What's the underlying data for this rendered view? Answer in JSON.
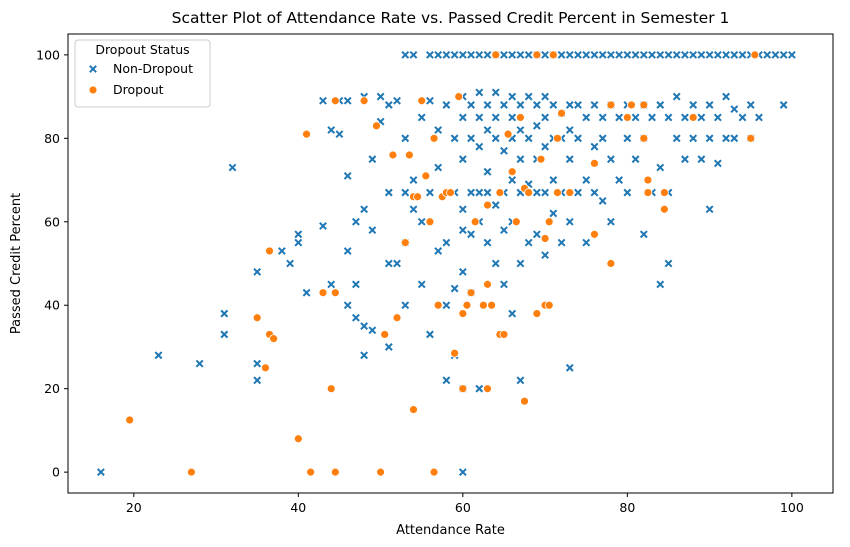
{
  "chart_data": {
    "type": "scatter",
    "title": "Scatter Plot of Attendance Rate vs. Passed Credit Percent in Semester 1",
    "xlabel": "Attendance Rate",
    "ylabel": "Passed Credit Percent",
    "xlim": [
      12,
      105
    ],
    "ylim": [
      -5,
      105
    ],
    "xticks": [
      20,
      40,
      60,
      80,
      100
    ],
    "yticks": [
      0,
      20,
      40,
      60,
      80,
      100
    ],
    "grid": false,
    "legend": {
      "title": "Dropout Status",
      "position": "top-left"
    },
    "series": [
      {
        "name": "Non-Dropout",
        "marker": "x",
        "color": "#1f77b4",
        "points": [
          [
            16,
            0
          ],
          [
            60,
            0
          ],
          [
            23,
            28
          ],
          [
            28,
            26
          ],
          [
            31,
            33
          ],
          [
            31,
            38
          ],
          [
            32,
            73
          ],
          [
            35,
            26
          ],
          [
            35,
            22
          ],
          [
            35,
            48
          ],
          [
            38,
            53
          ],
          [
            39,
            50
          ],
          [
            40,
            55
          ],
          [
            40,
            57
          ],
          [
            41,
            43
          ],
          [
            43,
            59
          ],
          [
            43,
            89
          ],
          [
            44,
            82
          ],
          [
            44,
            45
          ],
          [
            45,
            81
          ],
          [
            45,
            89
          ],
          [
            46,
            71
          ],
          [
            46,
            40
          ],
          [
            46,
            89
          ],
          [
            46,
            53
          ],
          [
            47,
            37
          ],
          [
            47,
            45
          ],
          [
            47,
            60
          ],
          [
            48,
            28
          ],
          [
            48,
            35
          ],
          [
            48,
            63
          ],
          [
            48,
            90
          ],
          [
            49,
            34
          ],
          [
            49,
            58
          ],
          [
            49,
            75
          ],
          [
            50,
            84
          ],
          [
            50,
            90
          ],
          [
            51,
            30
          ],
          [
            51,
            50
          ],
          [
            51,
            67
          ],
          [
            51,
            88
          ],
          [
            52,
            50
          ],
          [
            52,
            89
          ],
          [
            53,
            100
          ],
          [
            53,
            80
          ],
          [
            53,
            55
          ],
          [
            53,
            40
          ],
          [
            53,
            67
          ],
          [
            54,
            63
          ],
          [
            54,
            100
          ],
          [
            54,
            70
          ],
          [
            55,
            45
          ],
          [
            55,
            85
          ],
          [
            55,
            60
          ],
          [
            56,
            100
          ],
          [
            56,
            89
          ],
          [
            56,
            67
          ],
          [
            56,
            33
          ],
          [
            57,
            100
          ],
          [
            57,
            82
          ],
          [
            57,
            53
          ],
          [
            57,
            73
          ],
          [
            58,
            100
          ],
          [
            58,
            55
          ],
          [
            58,
            88
          ],
          [
            58,
            40
          ],
          [
            58,
            22
          ],
          [
            59,
            100
          ],
          [
            59,
            80
          ],
          [
            59,
            67
          ],
          [
            59,
            44
          ],
          [
            59,
            28
          ],
          [
            60,
            100
          ],
          [
            60,
            90
          ],
          [
            60,
            85
          ],
          [
            60,
            75
          ],
          [
            60,
            58
          ],
          [
            60,
            63
          ],
          [
            60,
            48
          ],
          [
            60,
            20
          ],
          [
            61,
            100
          ],
          [
            61,
            88
          ],
          [
            61,
            80
          ],
          [
            61,
            67
          ],
          [
            61,
            57
          ],
          [
            61,
            43
          ],
          [
            62,
            100
          ],
          [
            62,
            91
          ],
          [
            62,
            85
          ],
          [
            62,
            78
          ],
          [
            62,
            67
          ],
          [
            62,
            60
          ],
          [
            62,
            20
          ],
          [
            63,
            100
          ],
          [
            63,
            88
          ],
          [
            63,
            82
          ],
          [
            63,
            72
          ],
          [
            63,
            67
          ],
          [
            63,
            55
          ],
          [
            63,
            40
          ],
          [
            64,
            100
          ],
          [
            64,
            91
          ],
          [
            64,
            85
          ],
          [
            64,
            80
          ],
          [
            64,
            64
          ],
          [
            64,
            50
          ],
          [
            65,
            100
          ],
          [
            65,
            88
          ],
          [
            65,
            77
          ],
          [
            65,
            67
          ],
          [
            65,
            58
          ],
          [
            65,
            45
          ],
          [
            66,
            100
          ],
          [
            66,
            90
          ],
          [
            66,
            85
          ],
          [
            66,
            80
          ],
          [
            66,
            70
          ],
          [
            66,
            60
          ],
          [
            66,
            38
          ],
          [
            67,
            100
          ],
          [
            67,
            88
          ],
          [
            67,
            82
          ],
          [
            67,
            75
          ],
          [
            67,
            67
          ],
          [
            67,
            50
          ],
          [
            67,
            22
          ],
          [
            68,
            100
          ],
          [
            68,
            90
          ],
          [
            68,
            80
          ],
          [
            68,
            69
          ],
          [
            68,
            55
          ],
          [
            69,
            100
          ],
          [
            69,
            88
          ],
          [
            69,
            83
          ],
          [
            69,
            75
          ],
          [
            69,
            67
          ],
          [
            69,
            57
          ],
          [
            70,
            100
          ],
          [
            70,
            90
          ],
          [
            70,
            85
          ],
          [
            70,
            78
          ],
          [
            70,
            67
          ],
          [
            70,
            52
          ],
          [
            71,
            100
          ],
          [
            71,
            88
          ],
          [
            71,
            80
          ],
          [
            71,
            70
          ],
          [
            71,
            62
          ],
          [
            72,
            100
          ],
          [
            72,
            86
          ],
          [
            72,
            80
          ],
          [
            72,
            67
          ],
          [
            72,
            55
          ],
          [
            73,
            100
          ],
          [
            73,
            88
          ],
          [
            73,
            82
          ],
          [
            73,
            75
          ],
          [
            73,
            60
          ],
          [
            73,
            25
          ],
          [
            74,
            100
          ],
          [
            74,
            88
          ],
          [
            74,
            80
          ],
          [
            74,
            67
          ],
          [
            75,
            100
          ],
          [
            75,
            85
          ],
          [
            75,
            70
          ],
          [
            75,
            55
          ],
          [
            76,
            100
          ],
          [
            76,
            88
          ],
          [
            76,
            78
          ],
          [
            76,
            67
          ],
          [
            77,
            100
          ],
          [
            77,
            85
          ],
          [
            77,
            80
          ],
          [
            77,
            65
          ],
          [
            78,
            100
          ],
          [
            78,
            88
          ],
          [
            78,
            75
          ],
          [
            78,
            60
          ],
          [
            79,
            100
          ],
          [
            79,
            85
          ],
          [
            79,
            70
          ],
          [
            80,
            100
          ],
          [
            80,
            88
          ],
          [
            80,
            80
          ],
          [
            80,
            67
          ],
          [
            81,
            100
          ],
          [
            81,
            85
          ],
          [
            81,
            75
          ],
          [
            82,
            100
          ],
          [
            82,
            88
          ],
          [
            82,
            80
          ],
          [
            82,
            57
          ],
          [
            83,
            100
          ],
          [
            83,
            85
          ],
          [
            83,
            67
          ],
          [
            84,
            100
          ],
          [
            84,
            88
          ],
          [
            84,
            73
          ],
          [
            84,
            45
          ],
          [
            85,
            100
          ],
          [
            85,
            85
          ],
          [
            85,
            67
          ],
          [
            85,
            50
          ],
          [
            86,
            100
          ],
          [
            86,
            90
          ],
          [
            86,
            80
          ],
          [
            87,
            100
          ],
          [
            87,
            85
          ],
          [
            87,
            75
          ],
          [
            88,
            100
          ],
          [
            88,
            88
          ],
          [
            88,
            80
          ],
          [
            89,
            100
          ],
          [
            89,
            85
          ],
          [
            89,
            75
          ],
          [
            90,
            100
          ],
          [
            90,
            88
          ],
          [
            90,
            80
          ],
          [
            90,
            63
          ],
          [
            91,
            100
          ],
          [
            91,
            85
          ],
          [
            91,
            74
          ],
          [
            92,
            100
          ],
          [
            92,
            90
          ],
          [
            92,
            80
          ],
          [
            93,
            100
          ],
          [
            93,
            87
          ],
          [
            93,
            80
          ],
          [
            94,
            100
          ],
          [
            94,
            85
          ],
          [
            95,
            100
          ],
          [
            95,
            88
          ],
          [
            95,
            80
          ],
          [
            96,
            100
          ],
          [
            96,
            85
          ],
          [
            97,
            100
          ],
          [
            98,
            100
          ],
          [
            99,
            100
          ],
          [
            99,
            88
          ],
          [
            100,
            100
          ]
        ]
      },
      {
        "name": "Dropout",
        "marker": "o",
        "color": "#ff7f0e",
        "points": [
          [
            19.5,
            12.5
          ],
          [
            27,
            0
          ],
          [
            35,
            37
          ],
          [
            36,
            25
          ],
          [
            36.5,
            33
          ],
          [
            36.5,
            53
          ],
          [
            37,
            32
          ],
          [
            40,
            8
          ],
          [
            41,
            81
          ],
          [
            41.5,
            0
          ],
          [
            43,
            43
          ],
          [
            44,
            20
          ],
          [
            44.5,
            43
          ],
          [
            44.5,
            0
          ],
          [
            44.5,
            89
          ],
          [
            48,
            89
          ],
          [
            49.5,
            83
          ],
          [
            50,
            0
          ],
          [
            50.5,
            33
          ],
          [
            51.5,
            76
          ],
          [
            52,
            37
          ],
          [
            53,
            55
          ],
          [
            53.5,
            76
          ],
          [
            54,
            66
          ],
          [
            54,
            15
          ],
          [
            54.5,
            66
          ],
          [
            55,
            89
          ],
          [
            55.5,
            71
          ],
          [
            56,
            60
          ],
          [
            56.5,
            80
          ],
          [
            56.5,
            0
          ],
          [
            57,
            40
          ],
          [
            57.5,
            66
          ],
          [
            58,
            67
          ],
          [
            58.5,
            67
          ],
          [
            59,
            28.5
          ],
          [
            59.5,
            90
          ],
          [
            60,
            38
          ],
          [
            60,
            20
          ],
          [
            60.5,
            40
          ],
          [
            61,
            43
          ],
          [
            61.5,
            60
          ],
          [
            62.5,
            40
          ],
          [
            63,
            64
          ],
          [
            63,
            45
          ],
          [
            63,
            20
          ],
          [
            63.5,
            40
          ],
          [
            64,
            100
          ],
          [
            64.5,
            33
          ],
          [
            64.5,
            67
          ],
          [
            65,
            33
          ],
          [
            65.5,
            81
          ],
          [
            66,
            72
          ],
          [
            66.5,
            60
          ],
          [
            67,
            85
          ],
          [
            67.5,
            68
          ],
          [
            67.5,
            17
          ],
          [
            68,
            67
          ],
          [
            69,
            100
          ],
          [
            69,
            38
          ],
          [
            69.5,
            75
          ],
          [
            70,
            56
          ],
          [
            70,
            40
          ],
          [
            70.5,
            60
          ],
          [
            70.5,
            40
          ],
          [
            71,
            100
          ],
          [
            71.5,
            80
          ],
          [
            71.5,
            67
          ],
          [
            72,
            86
          ],
          [
            73,
            67
          ],
          [
            76,
            57
          ],
          [
            76,
            74
          ],
          [
            78,
            50
          ],
          [
            78,
            88
          ],
          [
            80,
            85
          ],
          [
            80.5,
            88
          ],
          [
            82,
            80
          ],
          [
            82,
            88
          ],
          [
            82.5,
            70
          ],
          [
            82.5,
            67
          ],
          [
            84.5,
            67
          ],
          [
            84.5,
            63
          ],
          [
            88,
            85
          ],
          [
            95,
            80
          ],
          [
            95.5,
            100
          ]
        ]
      }
    ]
  }
}
